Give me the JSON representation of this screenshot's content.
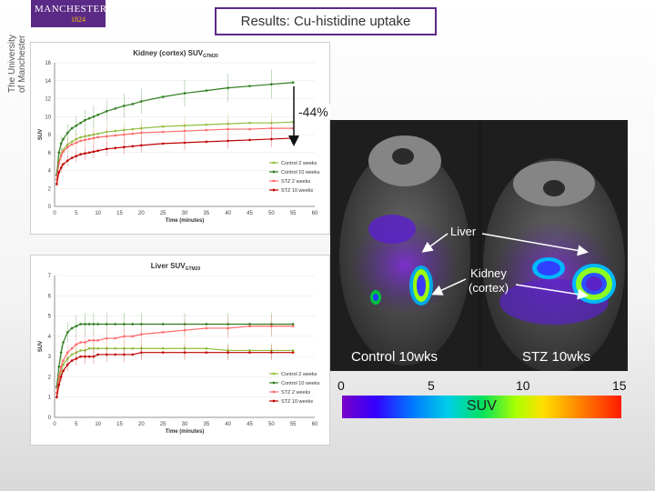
{
  "logo": {
    "name": "MANCHESTER",
    "year": "1824",
    "side_text": "The University of Manchester",
    "side_line1": "The University",
    "side_line2": "of Manchester"
  },
  "slide_title": "Results: Cu-histidine uptake",
  "annotation": {
    "percent": "-44%"
  },
  "pet": {
    "liver_label": "Liver",
    "kidney_label_line1": "Kidney",
    "kidney_label_line2": "(cortex)",
    "control_label": "Control 10wks",
    "stz_label": "STZ 10wks"
  },
  "colorbar": {
    "ticks": [
      "0",
      "5",
      "10",
      "15"
    ],
    "label": "SUV"
  },
  "colors": {
    "brand": "#5b2a86",
    "control_2": "#8fbf3f",
    "control_10": "#2e7d1e",
    "stz_2": "#ff6a6a",
    "stz_10": "#c00000"
  },
  "chart_data": [
    {
      "type": "line",
      "title": "Kidney (cortex) SUV",
      "title_sub": "GTM20",
      "xlabel": "Time (minutes)",
      "ylabel": "SUV",
      "xlim": [
        0,
        60
      ],
      "ylim": [
        0,
        16
      ],
      "x_ticks": [
        "0",
        "5",
        "10",
        "15",
        "20",
        "25",
        "30",
        "35",
        "40",
        "45",
        "50",
        "55",
        "60"
      ],
      "y_ticks": [
        "0",
        "2",
        "4",
        "6",
        "8",
        "10",
        "12",
        "14",
        "16"
      ],
      "legend_position": "right",
      "x": [
        0.5,
        1,
        1.5,
        2,
        3,
        4,
        5,
        6,
        7,
        8,
        9,
        10,
        12,
        14,
        16,
        18,
        20,
        25,
        30,
        35,
        40,
        45,
        50,
        55
      ],
      "series": [
        {
          "name": "Control 2 weeks",
          "color": "#8fbf3f",
          "values": [
            3.0,
            5.0,
            5.8,
            6.3,
            6.9,
            7.2,
            7.5,
            7.7,
            7.8,
            7.9,
            8.0,
            8.1,
            8.3,
            8.4,
            8.5,
            8.6,
            8.7,
            8.9,
            9.0,
            9.1,
            9.2,
            9.3,
            9.3,
            9.4
          ]
        },
        {
          "name": "Control 10 weeks",
          "color": "#2e7d1e",
          "values": [
            3.5,
            6.0,
            7.0,
            7.5,
            8.2,
            8.7,
            9.0,
            9.3,
            9.6,
            9.8,
            10.0,
            10.2,
            10.6,
            10.9,
            11.2,
            11.4,
            11.7,
            12.2,
            12.6,
            12.9,
            13.2,
            13.4,
            13.6,
            13.8
          ]
        },
        {
          "name": "STZ 2 weeks",
          "color": "#ff6a6a",
          "values": [
            3.0,
            4.8,
            5.6,
            6.1,
            6.6,
            6.9,
            7.1,
            7.3,
            7.4,
            7.5,
            7.6,
            7.7,
            7.8,
            7.9,
            8.0,
            8.1,
            8.2,
            8.3,
            8.4,
            8.5,
            8.6,
            8.6,
            8.7,
            8.7
          ]
        },
        {
          "name": "STZ 10 weeks",
          "color": "#c00000",
          "values": [
            2.5,
            3.8,
            4.3,
            4.7,
            5.1,
            5.4,
            5.6,
            5.8,
            5.9,
            6.0,
            6.1,
            6.2,
            6.4,
            6.5,
            6.6,
            6.7,
            6.8,
            7.0,
            7.1,
            7.2,
            7.3,
            7.4,
            7.5,
            7.6
          ]
        }
      ]
    },
    {
      "type": "line",
      "title": "Liver SUV",
      "title_sub": "GTM20",
      "xlabel": "Time (minutes)",
      "ylabel": "SUV",
      "xlim": [
        0,
        60
      ],
      "ylim": [
        0,
        7
      ],
      "x_ticks": [
        "0",
        "5",
        "10",
        "15",
        "20",
        "25",
        "30",
        "35",
        "40",
        "45",
        "50",
        "55",
        "60"
      ],
      "y_ticks": [
        "0",
        "1",
        "2",
        "3",
        "4",
        "5",
        "6",
        "7"
      ],
      "legend_position": "right",
      "x": [
        0.5,
        1,
        1.5,
        2,
        3,
        4,
        5,
        6,
        7,
        8,
        9,
        10,
        12,
        14,
        16,
        18,
        20,
        25,
        30,
        35,
        40,
        45,
        50,
        55
      ],
      "series": [
        {
          "name": "Control 2 weeks",
          "color": "#8fbf3f",
          "values": [
            1.2,
            1.9,
            2.3,
            2.6,
            2.9,
            3.1,
            3.2,
            3.3,
            3.3,
            3.4,
            3.4,
            3.4,
            3.4,
            3.4,
            3.4,
            3.4,
            3.4,
            3.4,
            3.4,
            3.4,
            3.3,
            3.3,
            3.3,
            3.3
          ]
        },
        {
          "name": "Control 10 weeks",
          "color": "#2e7d1e",
          "values": [
            1.5,
            2.5,
            3.2,
            3.7,
            4.2,
            4.4,
            4.5,
            4.6,
            4.6,
            4.6,
            4.6,
            4.6,
            4.6,
            4.6,
            4.6,
            4.6,
            4.6,
            4.6,
            4.6,
            4.6,
            4.6,
            4.6,
            4.6,
            4.6
          ]
        },
        {
          "name": "STZ 2 weeks",
          "color": "#ff6a6a",
          "values": [
            1.2,
            2.0,
            2.5,
            2.8,
            3.2,
            3.4,
            3.6,
            3.7,
            3.7,
            3.8,
            3.8,
            3.8,
            3.9,
            3.9,
            4.0,
            4.0,
            4.1,
            4.2,
            4.3,
            4.4,
            4.4,
            4.5,
            4.5,
            4.5
          ]
        },
        {
          "name": "STZ 10 weeks",
          "color": "#c00000",
          "values": [
            1.0,
            1.6,
            2.0,
            2.3,
            2.6,
            2.8,
            2.9,
            3.0,
            3.0,
            3.0,
            3.0,
            3.1,
            3.1,
            3.1,
            3.1,
            3.1,
            3.2,
            3.2,
            3.2,
            3.2,
            3.2,
            3.2,
            3.2,
            3.2
          ]
        }
      ]
    }
  ]
}
